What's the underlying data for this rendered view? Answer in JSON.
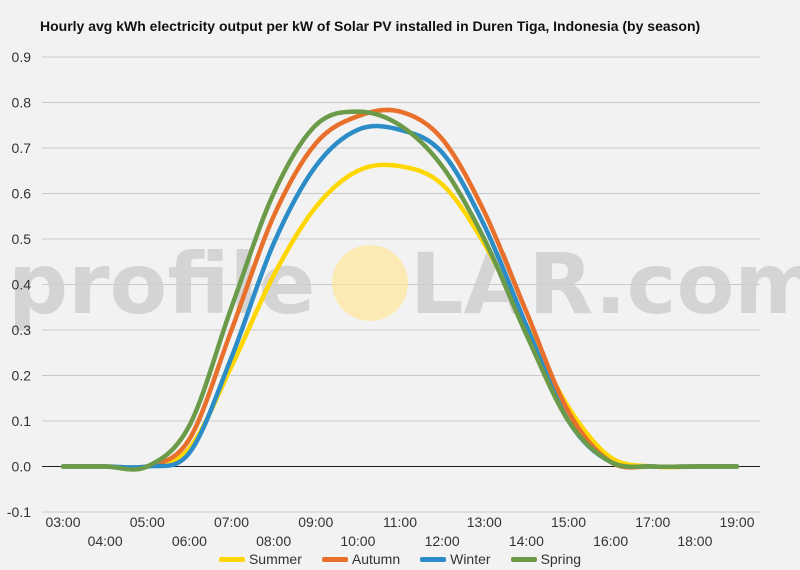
{
  "chart_data": {
    "type": "line",
    "title": "Hourly avg kWh electricity output per kW of Solar PV installed in Duren Tiga, Indonesia (by season)",
    "xlabel": "",
    "ylabel": "",
    "x": [
      "03:00",
      "04:00",
      "05:00",
      "06:00",
      "07:00",
      "08:00",
      "09:00",
      "10:00",
      "11:00",
      "12:00",
      "13:00",
      "14:00",
      "15:00",
      "16:00",
      "17:00",
      "18:00",
      "19:00"
    ],
    "ylim": [
      -0.1,
      0.9
    ],
    "yticks": [
      "-0.1",
      "0.0",
      "0.1",
      "0.2",
      "0.3",
      "0.4",
      "0.5",
      "0.6",
      "0.7",
      "0.8",
      "0.9"
    ],
    "grid": true,
    "legend": "bottom",
    "series": [
      {
        "name": "Summer",
        "color": "#ffd700",
        "values": [
          0,
          0,
          0,
          0.04,
          0.22,
          0.42,
          0.57,
          0.65,
          0.66,
          0.62,
          0.49,
          0.31,
          0.13,
          0.02,
          0,
          0,
          0
        ]
      },
      {
        "name": "Autumn",
        "color": "#e8702a",
        "values": [
          0,
          0,
          0,
          0.06,
          0.3,
          0.55,
          0.71,
          0.77,
          0.78,
          0.72,
          0.56,
          0.34,
          0.12,
          0.01,
          0,
          0,
          0
        ]
      },
      {
        "name": "Winter",
        "color": "#2c8cc7",
        "values": [
          0,
          0,
          0,
          0.03,
          0.24,
          0.49,
          0.66,
          0.74,
          0.74,
          0.69,
          0.53,
          0.31,
          0.1,
          0.01,
          0,
          0,
          0
        ]
      },
      {
        "name": "Spring",
        "color": "#6b9a48",
        "values": [
          0,
          0,
          0,
          0.09,
          0.35,
          0.6,
          0.75,
          0.78,
          0.75,
          0.66,
          0.5,
          0.29,
          0.1,
          0.01,
          0,
          0,
          0
        ]
      }
    ]
  },
  "watermark": {
    "left": "profile",
    "right": "LAR.com",
    "sun_color": "#ffe79a"
  }
}
